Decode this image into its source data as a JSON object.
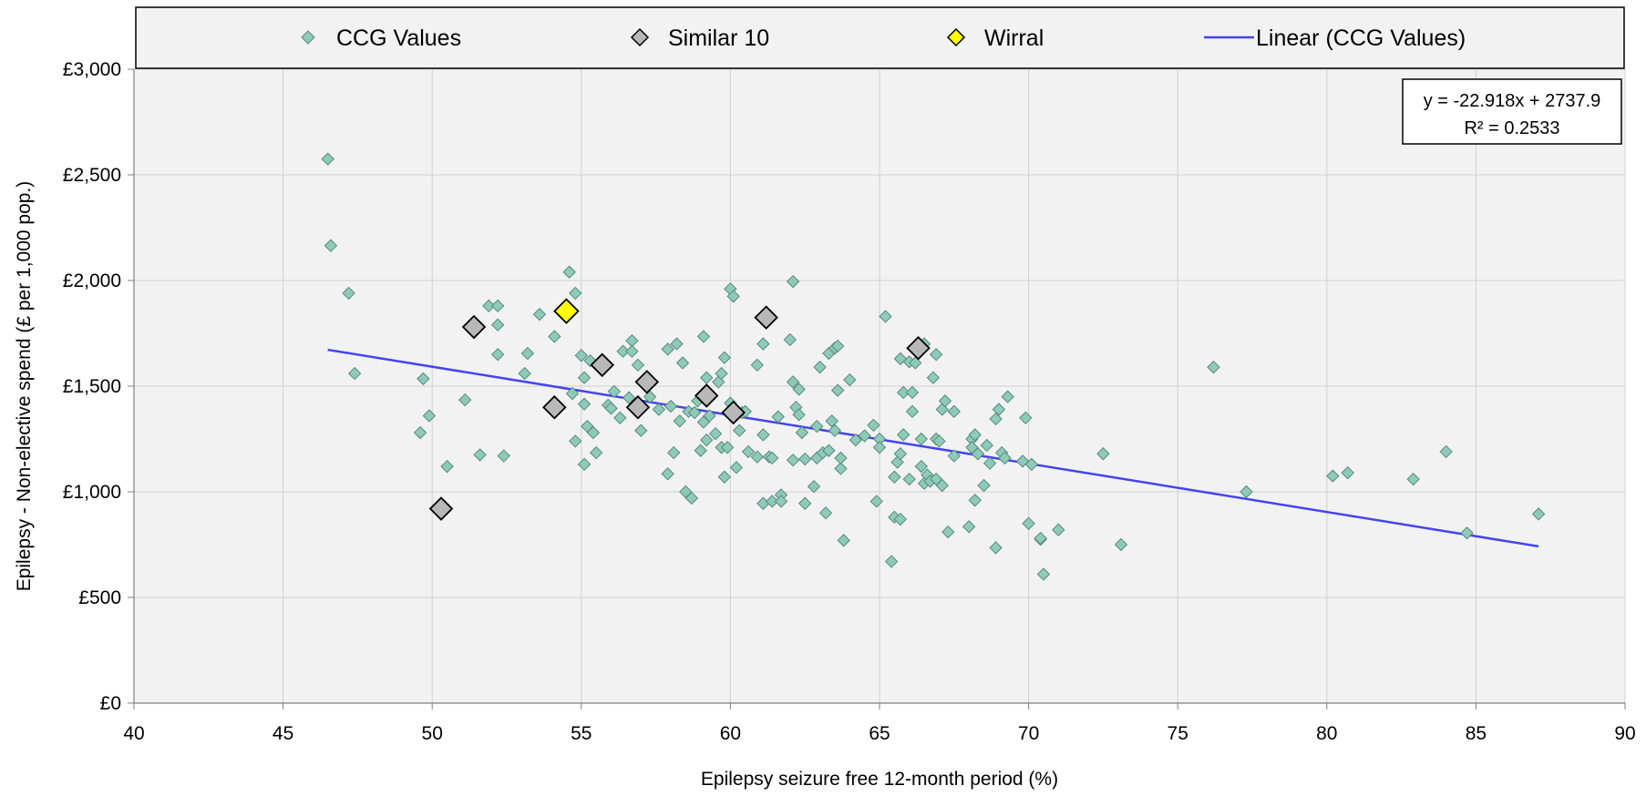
{
  "chart_data": {
    "type": "scatter",
    "title": "",
    "xlabel": "Epilepsy seizure free 12-month period (%)",
    "ylabel": "Epilepsy - Non-elective spend (£ per 1,000 pop.)",
    "xlim": [
      40,
      90
    ],
    "ylim": [
      0,
      3000
    ],
    "x_ticks": [
      "40",
      "45",
      "50",
      "55",
      "60",
      "65",
      "70",
      "75",
      "80",
      "85",
      "90"
    ],
    "y_ticks": [
      "£0",
      "£500",
      "£1,000",
      "£1,500",
      "£2,000",
      "£2,500",
      "£3,000"
    ],
    "grid": true,
    "legend_position": "top",
    "colors": {
      "ccg": "#8ecab9",
      "similar": "#b8b8b8",
      "wirral": "#ffff00",
      "trend": "#4444ee",
      "plot_bg": "#f2f2f2"
    },
    "equation_box": {
      "equation": "y = -22.918x + 2737.9",
      "r2": "R² = 0.2533"
    },
    "trendline": {
      "slope": -22.918,
      "intercept": 2737.9,
      "x_range": [
        46.5,
        87.1
      ]
    },
    "series": [
      {
        "name": "CCG Values",
        "marker": "diamond-small",
        "points": [
          [
            46.5,
            2575
          ],
          [
            46.6,
            2165
          ],
          [
            47.2,
            1940
          ],
          [
            47.4,
            1560
          ],
          [
            49.6,
            1280
          ],
          [
            49.7,
            1535
          ],
          [
            49.9,
            1360
          ],
          [
            50.5,
            1120
          ],
          [
            51.1,
            1435
          ],
          [
            51.6,
            1175
          ],
          [
            51.9,
            1880
          ],
          [
            52.2,
            1880
          ],
          [
            52.2,
            1790
          ],
          [
            52.2,
            1650
          ],
          [
            52.4,
            1170
          ],
          [
            53.1,
            1560
          ],
          [
            53.2,
            1655
          ],
          [
            53.6,
            1840
          ],
          [
            54.1,
            1735
          ],
          [
            54.6,
            2040
          ],
          [
            54.7,
            1465
          ],
          [
            54.8,
            1940
          ],
          [
            55.0,
            1645
          ],
          [
            55.1,
            1540
          ],
          [
            55.1,
            1415
          ],
          [
            55.1,
            1130
          ],
          [
            55.2,
            1310
          ],
          [
            55.3,
            1620
          ],
          [
            55.4,
            1280
          ],
          [
            55.5,
            1185
          ],
          [
            54.8,
            1240
          ],
          [
            55.9,
            1410
          ],
          [
            56.0,
            1395
          ],
          [
            56.1,
            1475
          ],
          [
            56.3,
            1350
          ],
          [
            56.4,
            1665
          ],
          [
            56.6,
            1445
          ],
          [
            56.7,
            1715
          ],
          [
            56.7,
            1665
          ],
          [
            56.9,
            1600
          ],
          [
            57.0,
            1290
          ],
          [
            57.2,
            1530
          ],
          [
            57.6,
            1390
          ],
          [
            57.9,
            1675
          ],
          [
            57.9,
            1085
          ],
          [
            58.0,
            1405
          ],
          [
            58.1,
            1185
          ],
          [
            58.2,
            1700
          ],
          [
            58.3,
            1335
          ],
          [
            58.4,
            1610
          ],
          [
            58.5,
            1000
          ],
          [
            58.6,
            1380
          ],
          [
            58.7,
            970
          ],
          [
            58.8,
            1375
          ],
          [
            58.9,
            1430
          ],
          [
            59.0,
            1195
          ],
          [
            59.1,
            1735
          ],
          [
            59.1,
            1330
          ],
          [
            59.2,
            1245
          ],
          [
            59.3,
            1360
          ],
          [
            59.5,
            1275
          ],
          [
            59.6,
            1520
          ],
          [
            59.7,
            1560
          ],
          [
            59.7,
            1210
          ],
          [
            59.8,
            1635
          ],
          [
            59.8,
            1070
          ],
          [
            59.9,
            1210
          ],
          [
            60.0,
            1960
          ],
          [
            60.0,
            1420
          ],
          [
            60.1,
            1925
          ],
          [
            60.2,
            1115
          ],
          [
            60.3,
            1290
          ],
          [
            60.4,
            1375
          ],
          [
            60.6,
            1190
          ],
          [
            60.9,
            1165
          ],
          [
            60.9,
            1600
          ],
          [
            61.1,
            1700
          ],
          [
            61.1,
            1270
          ],
          [
            61.1,
            945
          ],
          [
            61.3,
            1165
          ],
          [
            61.4,
            955
          ],
          [
            61.6,
            1355
          ],
          [
            61.7,
            985
          ],
          [
            61.7,
            955
          ],
          [
            62.0,
            1720
          ],
          [
            62.1,
            1995
          ],
          [
            62.1,
            1520
          ],
          [
            62.1,
            1150
          ],
          [
            62.2,
            1400
          ],
          [
            62.3,
            1365
          ],
          [
            62.3,
            1485
          ],
          [
            62.4,
            1280
          ],
          [
            62.5,
            945
          ],
          [
            62.5,
            1155
          ],
          [
            62.8,
            1025
          ],
          [
            62.9,
            1160
          ],
          [
            63.0,
            1590
          ],
          [
            63.1,
            1185
          ],
          [
            63.2,
            900
          ],
          [
            63.3,
            1195
          ],
          [
            63.3,
            1655
          ],
          [
            63.4,
            1335
          ],
          [
            63.5,
            1680
          ],
          [
            63.5,
            1290
          ],
          [
            63.6,
            1690
          ],
          [
            63.6,
            1480
          ],
          [
            63.7,
            1110
          ],
          [
            63.7,
            1160
          ],
          [
            63.8,
            770
          ],
          [
            64.0,
            1530
          ],
          [
            64.5,
            1265
          ],
          [
            64.8,
            1315
          ],
          [
            64.9,
            955
          ],
          [
            65.0,
            1250
          ],
          [
            65.0,
            1210
          ],
          [
            65.2,
            1830
          ],
          [
            65.5,
            880
          ],
          [
            65.5,
            1070
          ],
          [
            65.6,
            1140
          ],
          [
            65.7,
            1630
          ],
          [
            65.7,
            1180
          ],
          [
            65.7,
            870
          ],
          [
            65.8,
            1470
          ],
          [
            65.8,
            1270
          ],
          [
            66.0,
            1060
          ],
          [
            66.0,
            1615
          ],
          [
            66.1,
            1380
          ],
          [
            66.1,
            1470
          ],
          [
            66.2,
            1610
          ],
          [
            66.4,
            1120
          ],
          [
            66.4,
            1250
          ],
          [
            66.5,
            1700
          ],
          [
            66.5,
            1040
          ],
          [
            66.6,
            1080
          ],
          [
            66.7,
            1050
          ],
          [
            66.8,
            1540
          ],
          [
            66.9,
            1650
          ],
          [
            66.9,
            1250
          ],
          [
            66.9,
            1060
          ],
          [
            67.0,
            1240
          ],
          [
            67.1,
            1030
          ],
          [
            67.1,
            1390
          ],
          [
            67.2,
            1430
          ],
          [
            67.3,
            810
          ],
          [
            67.5,
            1380
          ],
          [
            67.5,
            1170
          ],
          [
            68.0,
            835
          ],
          [
            68.1,
            1250
          ],
          [
            68.1,
            1210
          ],
          [
            68.2,
            960
          ],
          [
            68.2,
            1270
          ],
          [
            68.3,
            1180
          ],
          [
            68.5,
            1030
          ],
          [
            68.6,
            1220
          ],
          [
            68.7,
            1135
          ],
          [
            68.9,
            1345
          ],
          [
            68.9,
            735
          ],
          [
            69.0,
            1390
          ],
          [
            69.1,
            1185
          ],
          [
            69.2,
            1160
          ],
          [
            69.3,
            1450
          ],
          [
            69.8,
            1145
          ],
          [
            69.9,
            1350
          ],
          [
            70.0,
            850
          ],
          [
            70.1,
            1130
          ],
          [
            70.4,
            775
          ],
          [
            70.4,
            780
          ],
          [
            70.5,
            610
          ],
          [
            71.0,
            820
          ],
          [
            72.5,
            1180
          ],
          [
            73.1,
            750
          ],
          [
            76.2,
            1590
          ],
          [
            77.3,
            1000
          ],
          [
            80.2,
            1075
          ],
          [
            80.7,
            1090
          ],
          [
            82.9,
            1060
          ],
          [
            84.0,
            1190
          ],
          [
            84.7,
            805
          ],
          [
            87.1,
            895
          ],
          [
            65.4,
            670
          ],
          [
            61.4,
            1160
          ],
          [
            59.2,
            1540
          ],
          [
            57.3,
            1450
          ],
          [
            64.2,
            1245
          ],
          [
            60.5,
            1380
          ],
          [
            62.9,
            1310
          ]
        ]
      },
      {
        "name": "Similar 10",
        "marker": "diamond-large",
        "points": [
          [
            50.3,
            920
          ],
          [
            51.4,
            1780
          ],
          [
            54.1,
            1400
          ],
          [
            55.7,
            1600
          ],
          [
            56.9,
            1400
          ],
          [
            57.2,
            1520
          ],
          [
            59.2,
            1455
          ],
          [
            60.1,
            1375
          ],
          [
            61.2,
            1825
          ],
          [
            66.3,
            1680
          ]
        ]
      },
      {
        "name": "Wirral",
        "marker": "diamond-large",
        "points": [
          [
            54.5,
            1855
          ]
        ]
      },
      {
        "name": "Linear (CCG Values)",
        "marker": "line",
        "points": []
      }
    ]
  }
}
